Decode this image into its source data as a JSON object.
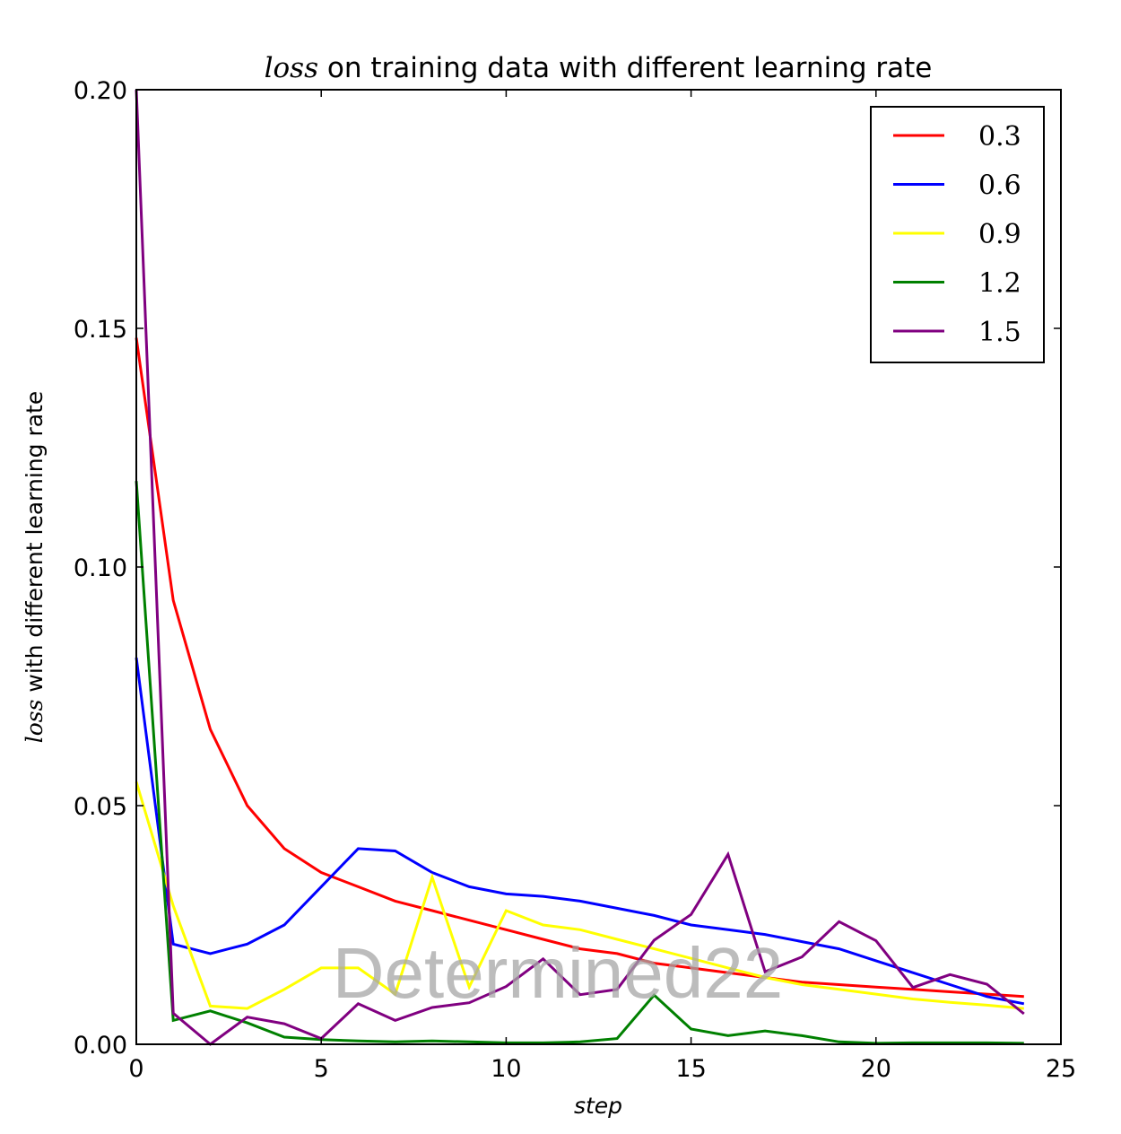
{
  "chart_data": {
    "type": "line",
    "title_math": "loss",
    "title_rest": " on training data with different learning rate",
    "xlabel": "step",
    "ylabel_math": "loss",
    "ylabel_rest": " with different learning rate",
    "xlim": [
      0,
      25
    ],
    "ylim": [
      0.0,
      0.2
    ],
    "xticks": [
      "0",
      "5",
      "10",
      "15",
      "20",
      "25"
    ],
    "yticks": [
      "0.00",
      "0.05",
      "0.10",
      "0.15",
      "0.20"
    ],
    "grid": false,
    "legend_position": "top-right",
    "x": [
      0,
      1,
      2,
      3,
      4,
      5,
      6,
      7,
      8,
      9,
      10,
      11,
      12,
      13,
      14,
      15,
      16,
      17,
      18,
      19,
      20,
      21,
      22,
      23,
      24
    ],
    "series": [
      {
        "name": "0.3",
        "color": "#ff0000",
        "values": [
          0.148,
          0.093,
          0.066,
          0.05,
          0.041,
          0.036,
          0.033,
          0.03,
          0.028,
          0.026,
          0.024,
          0.022,
          0.02,
          0.019,
          0.017,
          0.016,
          0.015,
          0.014,
          0.013,
          0.0125,
          0.012,
          0.0115,
          0.011,
          0.0105,
          0.01
        ]
      },
      {
        "name": "0.6",
        "color": "#0000ff",
        "values": [
          0.081,
          0.021,
          0.019,
          0.021,
          0.025,
          0.033,
          0.041,
          0.0405,
          0.036,
          0.033,
          0.0315,
          0.031,
          0.03,
          0.0285,
          0.027,
          0.025,
          0.024,
          0.023,
          0.0215,
          0.02,
          0.0175,
          0.015,
          0.0125,
          0.01,
          0.0085
        ]
      },
      {
        "name": "0.9",
        "color": "#ffff00",
        "values": [
          0.055,
          0.029,
          0.008,
          0.0075,
          0.0115,
          0.016,
          0.016,
          0.0105,
          0.035,
          0.012,
          0.028,
          0.025,
          0.024,
          0.022,
          0.02,
          0.018,
          0.016,
          0.014,
          0.0125,
          0.0115,
          0.0105,
          0.0095,
          0.0088,
          0.0082,
          0.0075
        ]
      },
      {
        "name": "1.2",
        "color": "#008000",
        "values": [
          0.118,
          0.005,
          0.007,
          0.0045,
          0.0015,
          0.001,
          0.0007,
          0.0005,
          0.0007,
          0.0005,
          0.0003,
          0.0003,
          0.0005,
          0.0012,
          0.0103,
          0.0032,
          0.0018,
          0.0028,
          0.0018,
          0.0005,
          0.0002,
          0.0003,
          0.0003,
          0.0003,
          0.0002
        ]
      },
      {
        "name": "1.5",
        "color": "#800080",
        "values": [
          0.2,
          0.0065,
          0.0,
          0.0057,
          0.0043,
          0.0012,
          0.0085,
          0.005,
          0.0077,
          0.0087,
          0.0121,
          0.0179,
          0.0104,
          0.0115,
          0.0218,
          0.0272,
          0.0398,
          0.0152,
          0.0183,
          0.0257,
          0.0217,
          0.0119,
          0.0146,
          0.0126,
          0.0064
        ]
      }
    ]
  },
  "watermark": "Determined22"
}
